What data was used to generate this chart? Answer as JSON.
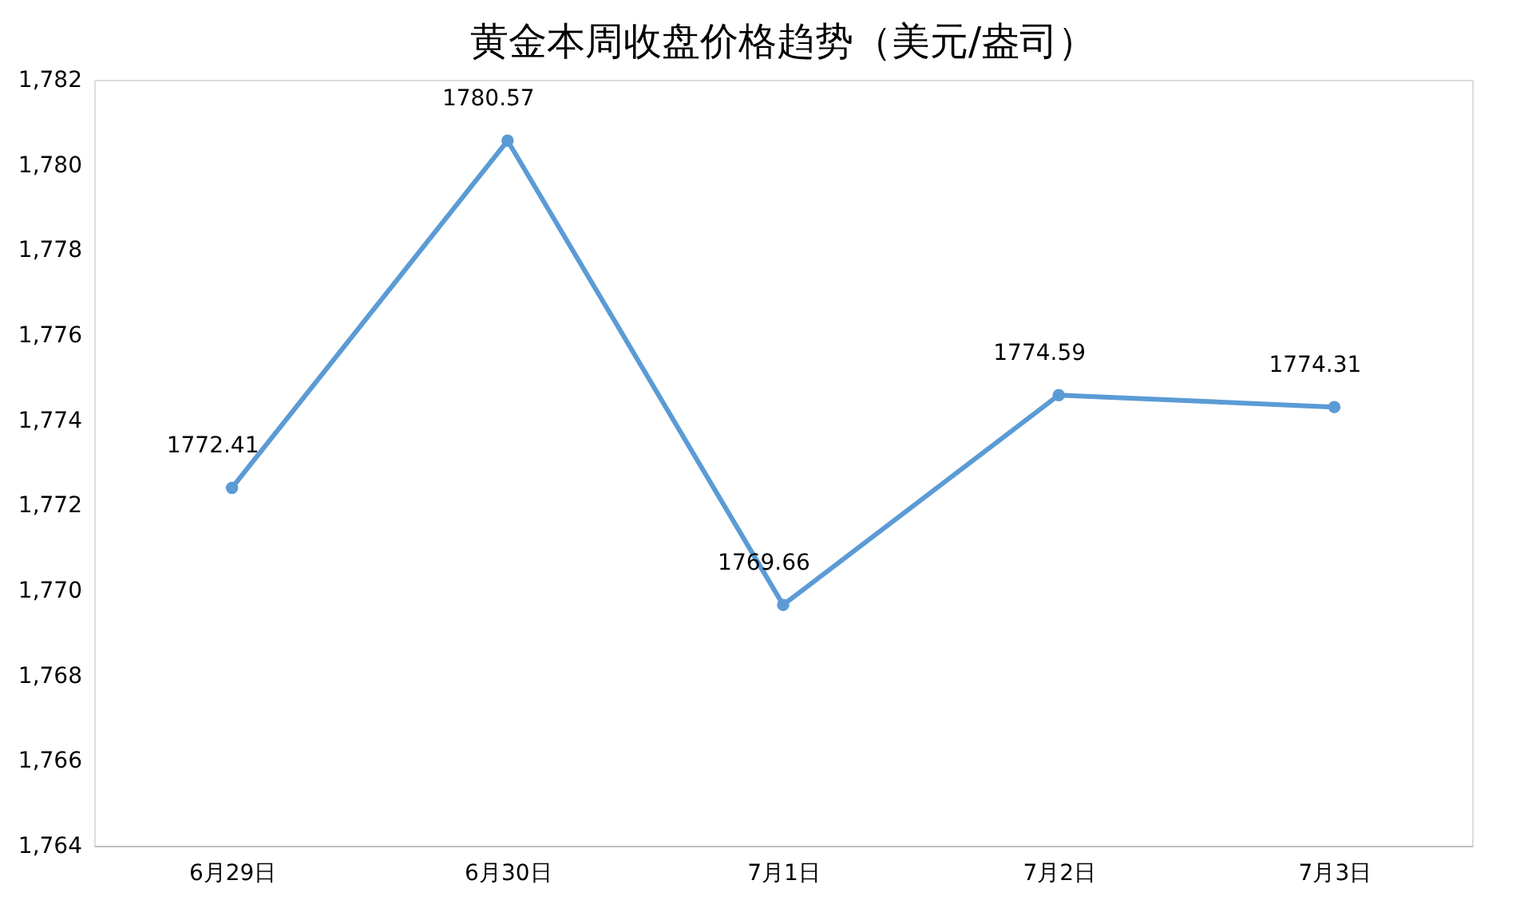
{
  "chart_data": {
    "type": "line",
    "title": "黄金本周收盘价格趋势（美元/盎司）",
    "categories": [
      "6月29日",
      "6月30日",
      "7月1日",
      "7月2日",
      "7月3日"
    ],
    "series": [
      {
        "color": "#5b9bd5",
        "values": [
          1772.41,
          1780.57,
          1769.66,
          1774.59,
          1774.31
        ]
      }
    ],
    "ylim": [
      1764,
      1782
    ],
    "yticks": [
      {
        "value": 1764,
        "label": "1,764"
      },
      {
        "value": 1766,
        "label": "1,766"
      },
      {
        "value": 1768,
        "label": "1,768"
      },
      {
        "value": 1770,
        "label": "1,770"
      },
      {
        "value": 1772,
        "label": "1,772"
      },
      {
        "value": 1774,
        "label": "1,774"
      },
      {
        "value": 1776,
        "label": "1,776"
      },
      {
        "value": 1778,
        "label": "1,778"
      },
      {
        "value": 1780,
        "label": "1,780"
      },
      {
        "value": 1782,
        "label": "1,782"
      }
    ],
    "grid": false,
    "marker": "circle",
    "line_style": "solid",
    "data_labels": true,
    "legend": false
  }
}
